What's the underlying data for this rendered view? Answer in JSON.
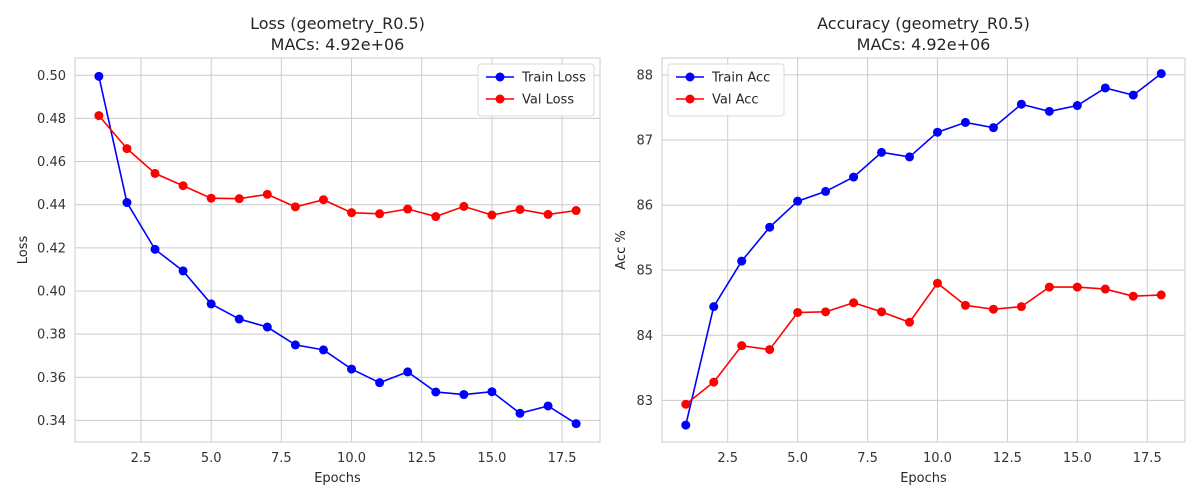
{
  "chart_data": [
    {
      "type": "line",
      "title": "Loss (geometry_R0.5)",
      "subtitle": "MACs: 4.92e+06",
      "xlabel": "Epochs",
      "ylabel": "Loss",
      "x": [
        1,
        2,
        3,
        4,
        5,
        6,
        7,
        8,
        9,
        10,
        11,
        12,
        13,
        14,
        15,
        16,
        17,
        18
      ],
      "xlim": [
        0.15,
        18.85
      ],
      "ylim": [
        0.33,
        0.508
      ],
      "xticks": [
        2.5,
        5.0,
        7.5,
        10.0,
        12.5,
        15.0,
        17.5
      ],
      "xtick_labels": [
        "2.5",
        "5.0",
        "7.5",
        "10.0",
        "12.5",
        "15.0",
        "17.5"
      ],
      "yticks": [
        0.34,
        0.36,
        0.38,
        0.4,
        0.42,
        0.44,
        0.46,
        0.48,
        0.5
      ],
      "ytick_labels": [
        "0.34",
        "0.36",
        "0.38",
        "0.40",
        "0.42",
        "0.44",
        "0.46",
        "0.48",
        "0.50"
      ],
      "grid": true,
      "legend_position": "top-right",
      "series": [
        {
          "name": "Train Loss",
          "color": "#0000ff",
          "values": [
            0.4995,
            0.441,
            0.4193,
            0.4093,
            0.394,
            0.387,
            0.3833,
            0.375,
            0.3727,
            0.3638,
            0.3575,
            0.3625,
            0.3532,
            0.352,
            0.3533,
            0.3433,
            0.3467,
            0.3385
          ]
        },
        {
          "name": "Val Loss",
          "color": "#ff0000",
          "values": [
            0.4813,
            0.466,
            0.4545,
            0.4488,
            0.443,
            0.4428,
            0.4448,
            0.439,
            0.4423,
            0.4363,
            0.4358,
            0.438,
            0.4345,
            0.4392,
            0.4352,
            0.4378,
            0.4355,
            0.4373
          ]
        }
      ]
    },
    {
      "type": "line",
      "title": "Accuracy (geometry_R0.5)",
      "subtitle": "MACs: 4.92e+06",
      "xlabel": "Epochs",
      "ylabel": "Acc %",
      "x": [
        1,
        2,
        3,
        4,
        5,
        6,
        7,
        8,
        9,
        10,
        11,
        12,
        13,
        14,
        15,
        16,
        17,
        18
      ],
      "xlim": [
        0.15,
        18.85
      ],
      "ylim": [
        82.36,
        88.26
      ],
      "xticks": [
        2.5,
        5.0,
        7.5,
        10.0,
        12.5,
        15.0,
        17.5
      ],
      "xtick_labels": [
        "2.5",
        "5.0",
        "7.5",
        "10.0",
        "12.5",
        "15.0",
        "17.5"
      ],
      "yticks": [
        83,
        84,
        85,
        86,
        87,
        88
      ],
      "ytick_labels": [
        "83",
        "84",
        "85",
        "86",
        "87",
        "88"
      ],
      "grid": true,
      "legend_position": "top-left",
      "series": [
        {
          "name": "Train Acc",
          "color": "#0000ff",
          "values": [
            82.62,
            84.44,
            85.14,
            85.66,
            86.06,
            86.21,
            86.43,
            86.81,
            86.74,
            87.12,
            87.27,
            87.19,
            87.55,
            87.44,
            87.53,
            87.8,
            87.69,
            88.02
          ]
        },
        {
          "name": "Val Acc",
          "color": "#ff0000",
          "values": [
            82.94,
            83.28,
            83.84,
            83.78,
            84.35,
            84.36,
            84.5,
            84.36,
            84.2,
            84.8,
            84.46,
            84.4,
            84.44,
            84.74,
            84.74,
            84.71,
            84.6,
            84.62
          ]
        }
      ]
    }
  ]
}
